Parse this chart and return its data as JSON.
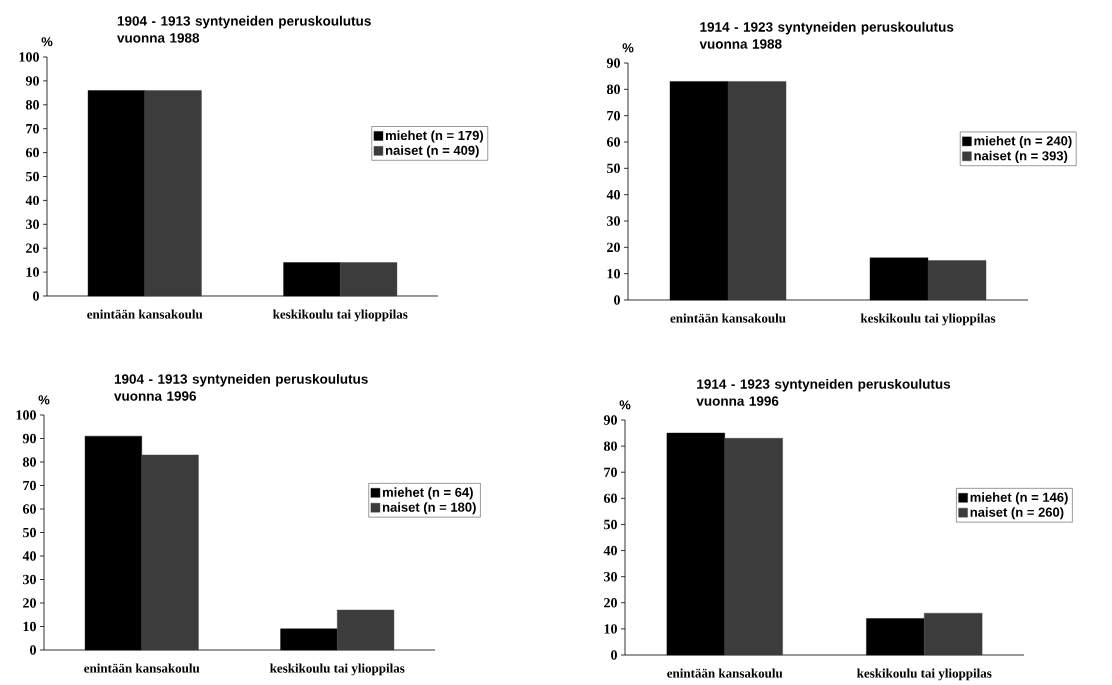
{
  "chart_data": [
    {
      "type": "bar",
      "title": "1904 - 1913 syntyneiden peruskoulutus vuonna 1988",
      "ylabel": "%",
      "categories": [
        "enintään  kansakoulu",
        "keskikoulu tai ylioppilas"
      ],
      "series": [
        {
          "name": "miehet (n = 179)",
          "color": "#000000",
          "values": [
            86,
            14
          ]
        },
        {
          "name": "naiset  (n = 409)",
          "color": "#3c3c3c",
          "values": [
            86,
            14
          ]
        }
      ],
      "ylim": [
        0,
        100
      ],
      "yticks": [
        0,
        10,
        20,
        30,
        40,
        50,
        60,
        70,
        80,
        90,
        100
      ],
      "legend": "right"
    },
    {
      "type": "bar",
      "title": "1914 - 1923 syntyneiden peruskoulutus vuonna 1988",
      "ylabel": "%",
      "categories": [
        "enintään  kansakoulu",
        "keskikoulu tai ylioppilas"
      ],
      "series": [
        {
          "name": "miehet (n = 240)",
          "color": "#000000",
          "values": [
            83,
            16
          ]
        },
        {
          "name": "naiset  (n = 393)",
          "color": "#3c3c3c",
          "values": [
            83,
            15
          ]
        }
      ],
      "ylim": [
        0,
        90
      ],
      "yticks": [
        0,
        10,
        20,
        30,
        40,
        50,
        60,
        70,
        80,
        90
      ],
      "legend": "right"
    },
    {
      "type": "bar",
      "title": "1904 - 1913 syntyneiden peruskoulutus vuonna 1996",
      "ylabel": "%",
      "categories": [
        "enintään  kansakoulu",
        "keskikoulu tai ylioppilas"
      ],
      "series": [
        {
          "name": "miehet (n = 64)",
          "color": "#000000",
          "values": [
            91,
            9
          ]
        },
        {
          "name": "naiset  (n = 180)",
          "color": "#3c3c3c",
          "values": [
            83,
            17
          ]
        }
      ],
      "ylim": [
        0,
        100
      ],
      "yticks": [
        0,
        10,
        20,
        30,
        40,
        50,
        60,
        70,
        80,
        90,
        100
      ],
      "legend": "right"
    },
    {
      "type": "bar",
      "title": "1914 - 1923 syntyneiden peruskoulutus vuonna 1996",
      "ylabel": "%",
      "categories": [
        "enintään  kansakoulu",
        "keskikoulu tai ylioppilas"
      ],
      "series": [
        {
          "name": "miehet (n = 146)",
          "color": "#000000",
          "values": [
            85,
            14
          ]
        },
        {
          "name": "naiset  (n = 260)",
          "color": "#3c3c3c",
          "values": [
            83,
            16
          ]
        }
      ],
      "ylim": [
        0,
        90
      ],
      "yticks": [
        0,
        10,
        20,
        30,
        40,
        50,
        60,
        70,
        80,
        90
      ],
      "legend": "right"
    }
  ]
}
